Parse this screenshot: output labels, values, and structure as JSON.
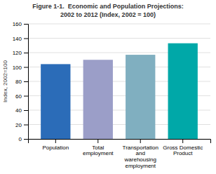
{
  "chart_data": {
    "type": "bar",
    "title": "Figure 1-1.  Economic and Population Projections:",
    "subtitle": "2002 to 2012 (Index, 2002 = 100)",
    "categories": [
      "Population",
      "Total\nemployment",
      "Transportation\nand\nwarehousing\nemployment",
      "Gross Domestic\nProduct"
    ],
    "values": [
      104,
      110,
      117,
      133
    ],
    "colors": [
      "#2b6cb8",
      "#9b9ec8",
      "#80afc0",
      "#00a8a8"
    ],
    "ylabel": "Index, 2002=100",
    "ylim": [
      0,
      160
    ],
    "yticks": [
      0,
      20,
      40,
      60,
      80,
      100,
      120,
      140,
      160
    ],
    "grid": true
  }
}
